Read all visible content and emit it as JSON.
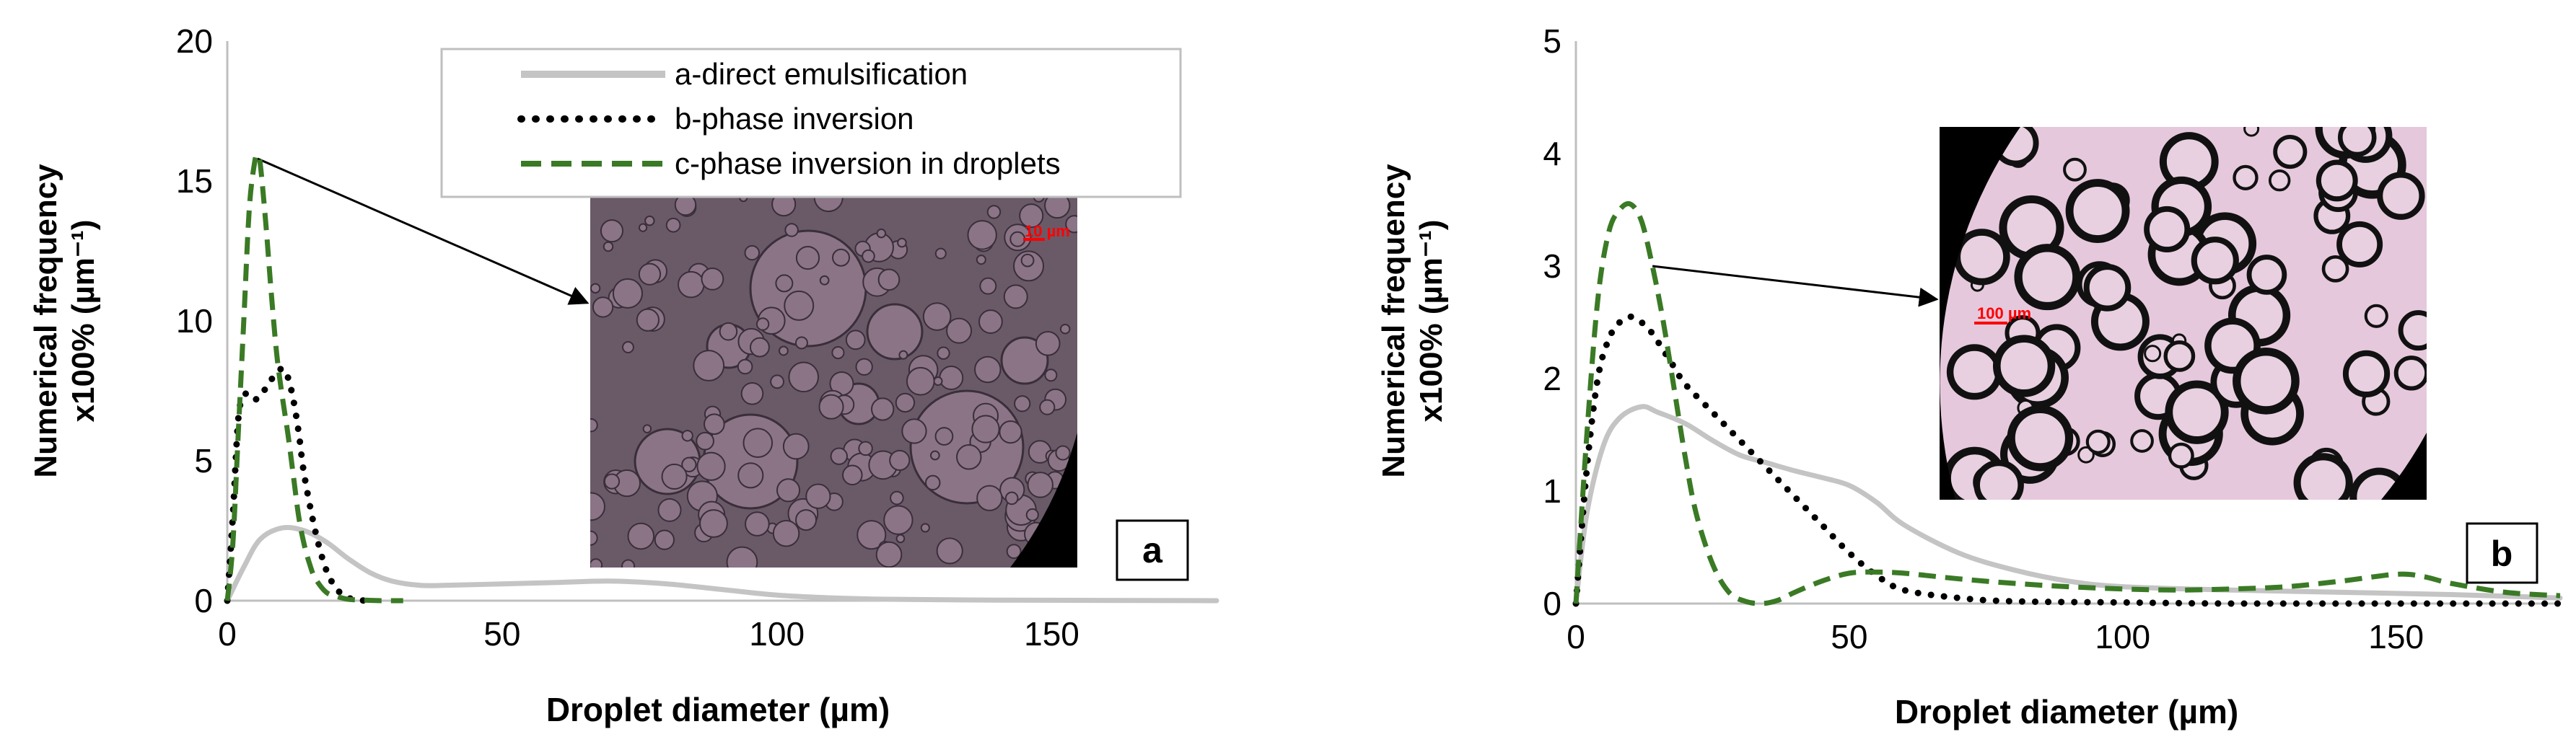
{
  "colors": {
    "series_a": "#c4c4c4",
    "series_b": "#000000",
    "series_c": "#3a7a25",
    "axis": "#bfbfbf",
    "text": "#000000",
    "micrograph_bg": "#6a5a68",
    "droplet_fill": "#8a7486",
    "scale_bar": "#ff0000"
  },
  "legend": {
    "entries": [
      "a-direct emulsification",
      "b-phase inversion",
      "c-phase inversion in droplets"
    ]
  },
  "chart_data": [
    {
      "type": "line",
      "panel_label": "a",
      "xlabel": "Droplet diameter (µm)",
      "ylabel_line1": "Numerical frequency",
      "ylabel_line2": "x100% (µm⁻¹)",
      "xlim": [
        0,
        180
      ],
      "ylim": [
        0,
        20
      ],
      "xticks": [
        0,
        50,
        100,
        150
      ],
      "yticks": [
        0,
        5,
        10,
        15,
        20
      ],
      "inset": {
        "scale_text": "10 µm",
        "pointer_from": {
          "x": 5.5,
          "y": 15.8
        }
      },
      "series": [
        {
          "name": "a-direct emulsification",
          "style": "solid",
          "x": [
            0,
            3,
            6,
            10,
            14,
            18,
            22,
            26,
            30,
            35,
            40,
            50,
            60,
            70,
            80,
            90,
            100,
            110,
            120,
            140,
            160,
            180
          ],
          "y": [
            0,
            1.2,
            2.2,
            2.6,
            2.5,
            2.1,
            1.5,
            1.0,
            0.7,
            0.55,
            0.55,
            0.6,
            0.65,
            0.7,
            0.6,
            0.4,
            0.2,
            0.1,
            0.05,
            0.02,
            0.01,
            0.0
          ]
        },
        {
          "name": "b-phase inversion",
          "style": "dotted",
          "x": [
            0,
            1,
            2,
            3,
            4,
            5,
            6,
            7,
            8,
            9,
            10,
            11,
            12,
            13,
            14,
            16,
            18,
            20,
            22,
            25
          ],
          "y": [
            0,
            3.0,
            6.5,
            7.3,
            7.4,
            7.2,
            7.3,
            7.6,
            7.9,
            8.1,
            8.3,
            8.0,
            7.2,
            6.0,
            4.5,
            2.5,
            1.1,
            0.4,
            0.1,
            0.0
          ]
        },
        {
          "name": "c-phase inversion in droplets",
          "style": "dashed",
          "x": [
            0,
            1,
            2,
            3,
            4,
            5,
            5.5,
            6,
            7,
            8,
            9,
            10,
            11,
            12,
            13,
            14,
            15,
            16,
            18,
            20,
            22,
            25,
            28,
            32
          ],
          "y": [
            0,
            2.0,
            6.0,
            10.0,
            14.0,
            15.7,
            15.9,
            15.6,
            13.5,
            11.0,
            8.8,
            7.3,
            6.0,
            4.5,
            3.0,
            2.0,
            1.3,
            0.8,
            0.3,
            0.15,
            0.05,
            0.02,
            0.0,
            0.0
          ]
        }
      ]
    },
    {
      "type": "line",
      "panel_label": "b",
      "xlabel": "Droplet diameter (µm)",
      "ylabel_line1": "Numerical frequency",
      "ylabel_line2": "x100% (µm⁻¹)",
      "xlim": [
        0,
        180
      ],
      "ylim": [
        0,
        5
      ],
      "xticks": [
        0,
        50,
        100,
        150
      ],
      "yticks": [
        0,
        1,
        2,
        3,
        4,
        5
      ],
      "inset": {
        "scale_text": "100 µm",
        "pointer_from": {
          "x": 14,
          "y": 3.0
        }
      },
      "series": [
        {
          "name": "a-direct emulsification",
          "style": "solid",
          "x": [
            0,
            2,
            5,
            8,
            12,
            15,
            20,
            25,
            30,
            35,
            40,
            45,
            50,
            55,
            60,
            70,
            80,
            90,
            100,
            120,
            140,
            160,
            180
          ],
          "y": [
            0,
            0.8,
            1.4,
            1.65,
            1.75,
            1.7,
            1.6,
            1.45,
            1.32,
            1.25,
            1.18,
            1.12,
            1.05,
            0.9,
            0.7,
            0.45,
            0.3,
            0.2,
            0.15,
            0.12,
            0.1,
            0.08,
            0.05
          ]
        },
        {
          "name": "b-phase inversion",
          "style": "dotted",
          "x": [
            0,
            2,
            4,
            6,
            8,
            10,
            12,
            14,
            16,
            18,
            20,
            25,
            30,
            35,
            40,
            45,
            50,
            55,
            60,
            70,
            80,
            100,
            120,
            150,
            180
          ],
          "y": [
            0,
            1.2,
            2.0,
            2.35,
            2.5,
            2.55,
            2.5,
            2.4,
            2.25,
            2.1,
            1.95,
            1.7,
            1.45,
            1.2,
            0.95,
            0.7,
            0.45,
            0.25,
            0.12,
            0.05,
            0.02,
            0.01,
            0.0,
            0.0,
            0.0
          ]
        },
        {
          "name": "c-phase inversion in droplets",
          "style": "dashed",
          "x": [
            0,
            2,
            4,
            6,
            8,
            10,
            12,
            14,
            16,
            18,
            20,
            22,
            25,
            28,
            31,
            34,
            37,
            40,
            45,
            50,
            55,
            60,
            70,
            80,
            90,
            100,
            110,
            120,
            130,
            140,
            150,
            155,
            160,
            170,
            180
          ],
          "y": [
            0,
            1.5,
            2.7,
            3.3,
            3.5,
            3.55,
            3.4,
            3.0,
            2.5,
            1.9,
            1.3,
            0.8,
            0.35,
            0.1,
            0.02,
            0.0,
            0.03,
            0.1,
            0.2,
            0.27,
            0.28,
            0.27,
            0.22,
            0.18,
            0.15,
            0.13,
            0.12,
            0.13,
            0.15,
            0.2,
            0.26,
            0.24,
            0.18,
            0.1,
            0.07
          ]
        }
      ]
    }
  ]
}
